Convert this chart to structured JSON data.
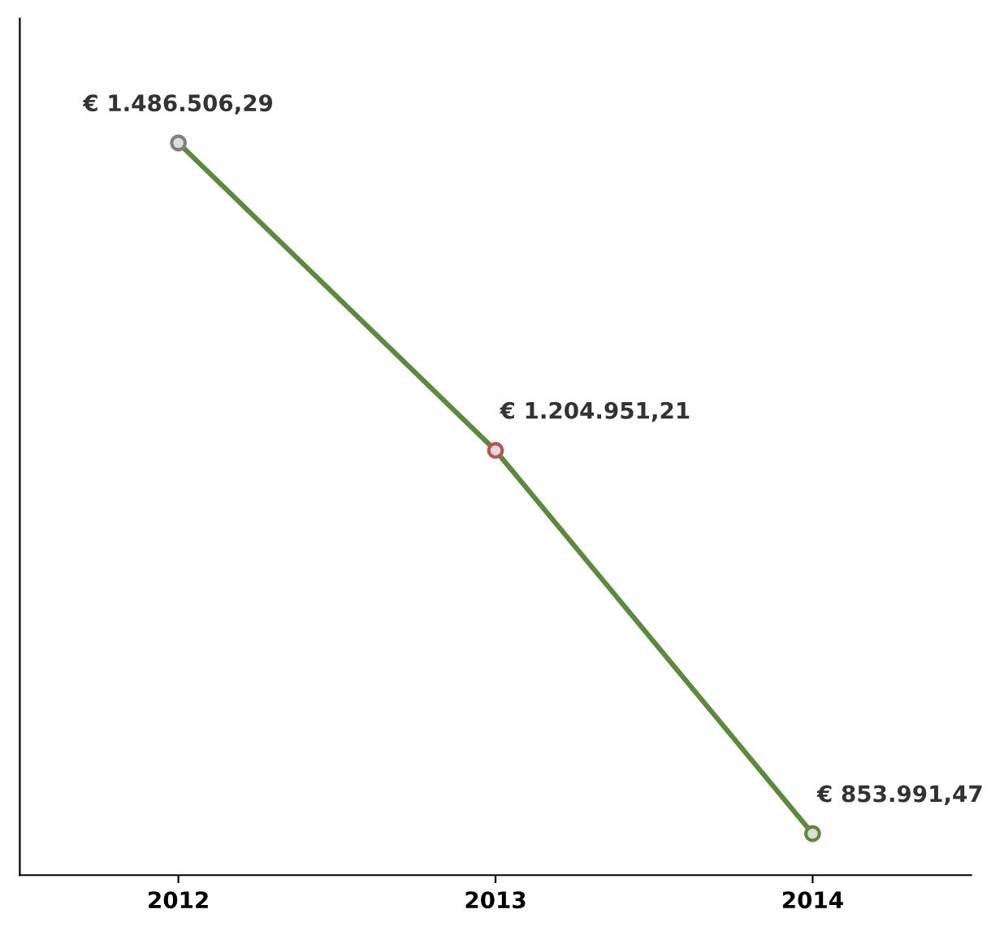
{
  "chart_data": {
    "type": "line",
    "categories": [
      "2012",
      "2013",
      "2014"
    ],
    "series": [
      {
        "color": "#5b8a3c",
        "colors": [
          "#808080",
          "#c0504d",
          "#5b8a3c"
        ],
        "values": [
          1486506.29,
          1204951.21,
          853991.47
        ],
        "value_labels": [
          "€ 1.486.506,29",
          "€ 1.204.951,21",
          "€ 853.991,47"
        ]
      }
    ],
    "marker": "circle",
    "line_style": "solid",
    "grid": false,
    "legend": false,
    "tick_labels": "x"
  }
}
